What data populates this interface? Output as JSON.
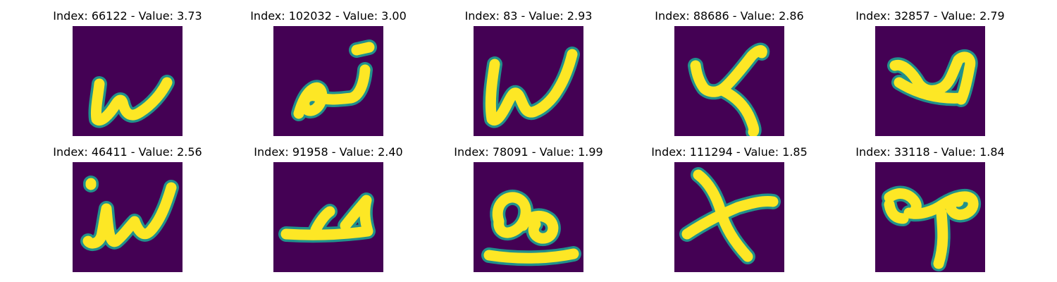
{
  "colors": {
    "background": "#440154",
    "mid": "#21918c",
    "stroke": "#fde725"
  },
  "panels": [
    {
      "title": "Index: 66122 - Value: 3.73",
      "glyph": "w-upright"
    },
    {
      "title": "Index: 102032 - Value: 3.00",
      "glyph": "loop-hook"
    },
    {
      "title": "Index: 83 - Value: 2.93",
      "glyph": "w-bold"
    },
    {
      "title": "Index: 88686 - Value: 2.86",
      "glyph": "k-curve"
    },
    {
      "title": "Index: 32857 - Value: 2.79",
      "glyph": "blob"
    },
    {
      "title": "Index: 46411 - Value: 2.56",
      "glyph": "w-thin"
    },
    {
      "title": "Index: 91958 - Value: 2.40",
      "glyph": "flat-stroke"
    },
    {
      "title": "Index: 78091 - Value: 1.99",
      "glyph": "double-loop"
    },
    {
      "title": "Index: 111294 - Value: 1.85",
      "glyph": "x-cross"
    },
    {
      "title": "Index: 33118 - Value: 1.84",
      "glyph": "swirl-loop"
    }
  ]
}
